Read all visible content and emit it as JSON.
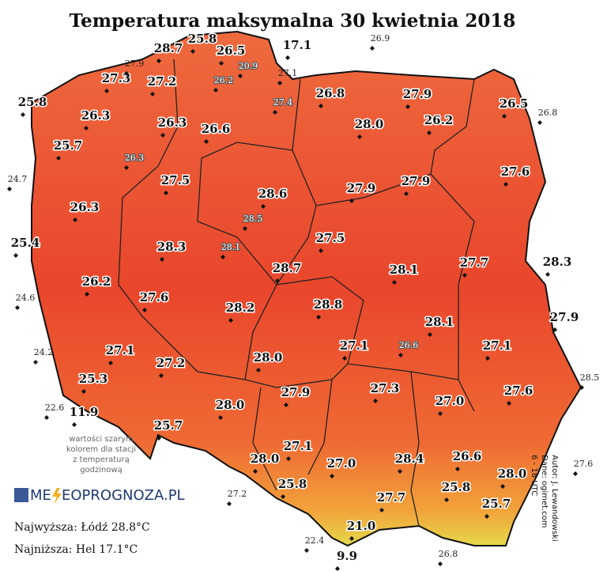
{
  "title": "Temperatura maksymalna 30 kwietnia 2018",
  "stations": [
    "28.7",
    "25.8",
    "26.5",
    "17.1",
    "27.3",
    "27.2",
    "25.8",
    "26.8",
    "27.9",
    "26.5",
    "26.3",
    "26.3",
    "26.6",
    "28.0",
    "26.2",
    "25.7",
    "27.6",
    "27.5",
    "28.6",
    "27.9",
    "27.9",
    "26.3",
    "25.4",
    "28.3",
    "27.5",
    "28.3",
    "28.7",
    "28.1",
    "27.7",
    "26.2",
    "27.6",
    "28.2",
    "28.8",
    "27.9",
    "28.1",
    "28.0",
    "27.1",
    "27.1",
    "27.1",
    "27.2",
    "25.3",
    "27.3",
    "27.9",
    "27.0",
    "27.6",
    "28.0",
    "11.9",
    "25.7",
    "27.1",
    "27.0",
    "28.0",
    "26.6",
    "28.4",
    "28.0",
    "25.8",
    "25.8",
    "27.7",
    "25.7",
    "21.0",
    "9.9"
  ],
  "hourly_stations": [
    "26.9",
    "27.9",
    "20.9",
    "27.1",
    "26.2",
    "27.4",
    "26.8",
    "26.3",
    "24.7",
    "28.5",
    "28.1",
    "24.6",
    "26.6",
    "24.2",
    "22.6",
    "28.5",
    "27.6",
    "27.2",
    "22.4",
    "26.8"
  ],
  "note": [
    "wartości szarym",
    "kolorem dla stacji",
    "z temperaturą",
    "godzinową"
  ],
  "logo": {
    "left": "ME",
    "right": "EOPROGNOZA.PL"
  },
  "highest": "Najwyższa: Łódź 28.8°C",
  "lowest": "Najniższa: Hel 17.1°C",
  "credits": [
    "Autor: J. Lewandowski",
    "Dane: ogimet.com",
    "6 - 18 UTC"
  ]
}
